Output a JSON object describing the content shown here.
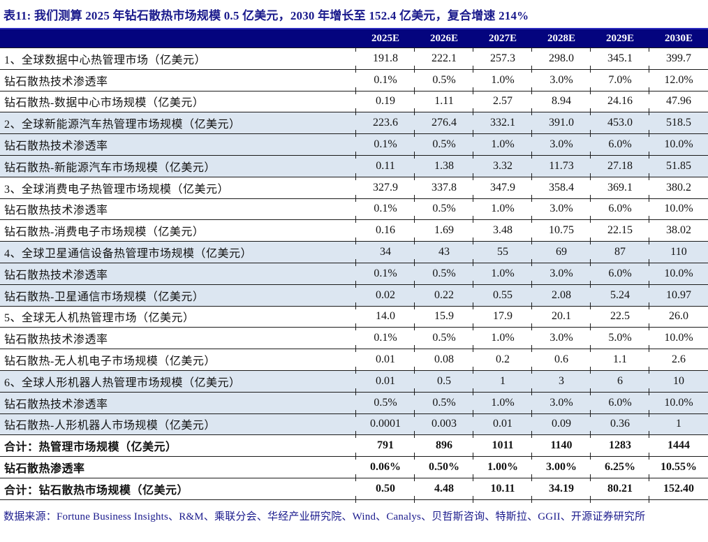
{
  "title": "表11:  我们测算 2025 年钻石散热市场规模 0.5 亿美元，2030 年增长至 152.4 亿美元，复合增速 214%",
  "table": {
    "label_column_header": "",
    "columns": [
      "2025E",
      "2026E",
      "2027E",
      "2028E",
      "2029E",
      "2030E"
    ],
    "rows": [
      {
        "label": "1、全球数据中心热管理市场（亿美元）",
        "values": [
          "191.8",
          "222.1",
          "257.3",
          "298.0",
          "345.1",
          "399.7"
        ],
        "shaded": false,
        "bold": false
      },
      {
        "label": "钻石散热技术渗透率",
        "values": [
          "0.1%",
          "0.5%",
          "1.0%",
          "3.0%",
          "7.0%",
          "12.0%"
        ],
        "shaded": false,
        "bold": false
      },
      {
        "label": "钻石散热-数据中心市场规模（亿美元）",
        "values": [
          "0.19",
          "1.11",
          "2.57",
          "8.94",
          "24.16",
          "47.96"
        ],
        "shaded": false,
        "bold": false
      },
      {
        "label": "2、全球新能源汽车热管理市场规模（亿美元）",
        "values": [
          "223.6",
          "276.4",
          "332.1",
          "391.0",
          "453.0",
          "518.5"
        ],
        "shaded": true,
        "bold": false
      },
      {
        "label": "钻石散热技术渗透率",
        "values": [
          "0.1%",
          "0.5%",
          "1.0%",
          "3.0%",
          "6.0%",
          "10.0%"
        ],
        "shaded": true,
        "bold": false
      },
      {
        "label": "钻石散热-新能源汽车市场规模（亿美元）",
        "values": [
          "0.11",
          "1.38",
          "3.32",
          "11.73",
          "27.18",
          "51.85"
        ],
        "shaded": true,
        "bold": false
      },
      {
        "label": "3、全球消费电子热管理市场规模（亿美元）",
        "values": [
          "327.9",
          "337.8",
          "347.9",
          "358.4",
          "369.1",
          "380.2"
        ],
        "shaded": false,
        "bold": false
      },
      {
        "label": "钻石散热技术渗透率",
        "values": [
          "0.1%",
          "0.5%",
          "1.0%",
          "3.0%",
          "6.0%",
          "10.0%"
        ],
        "shaded": false,
        "bold": false
      },
      {
        "label": "钻石散热-消费电子市场规模（亿美元）",
        "values": [
          "0.16",
          "1.69",
          "3.48",
          "10.75",
          "22.15",
          "38.02"
        ],
        "shaded": false,
        "bold": false
      },
      {
        "label": "4、全球卫星通信设备热管理市场规模（亿美元）",
        "values": [
          "34",
          "43",
          "55",
          "69",
          "87",
          "110"
        ],
        "shaded": true,
        "bold": false
      },
      {
        "label": "钻石散热技术渗透率",
        "values": [
          "0.1%",
          "0.5%",
          "1.0%",
          "3.0%",
          "6.0%",
          "10.0%"
        ],
        "shaded": true,
        "bold": false
      },
      {
        "label": "钻石散热-卫星通信市场规模（亿美元）",
        "values": [
          "0.02",
          "0.22",
          "0.55",
          "2.08",
          "5.24",
          "10.97"
        ],
        "shaded": true,
        "bold": false
      },
      {
        "label": "5、全球无人机热管理市场（亿美元）",
        "values": [
          "14.0",
          "15.9",
          "17.9",
          "20.1",
          "22.5",
          "26.0"
        ],
        "shaded": false,
        "bold": false
      },
      {
        "label": "钻石散热技术渗透率",
        "values": [
          "0.1%",
          "0.5%",
          "1.0%",
          "3.0%",
          "5.0%",
          "10.0%"
        ],
        "shaded": false,
        "bold": false
      },
      {
        "label": "钻石散热-无人机电子市场规模（亿美元）",
        "values": [
          "0.01",
          "0.08",
          "0.2",
          "0.6",
          "1.1",
          "2.6"
        ],
        "shaded": false,
        "bold": false
      },
      {
        "label": "6、全球人形机器人热管理市场规模（亿美元）",
        "values": [
          "0.01",
          "0.5",
          "1",
          "3",
          "6",
          "10"
        ],
        "shaded": true,
        "bold": false
      },
      {
        "label": "钻石散热技术渗透率",
        "values": [
          "0.5%",
          "0.5%",
          "1.0%",
          "3.0%",
          "6.0%",
          "10.0%"
        ],
        "shaded": true,
        "bold": false
      },
      {
        "label": "钻石散热-人形机器人市场规模（亿美元）",
        "values": [
          "0.0001",
          "0.003",
          "0.01",
          "0.09",
          "0.36",
          "1"
        ],
        "shaded": true,
        "bold": false
      },
      {
        "label": "合计：热管理市场规模（亿美元）",
        "values": [
          "791",
          "896",
          "1011",
          "1140",
          "1283",
          "1444"
        ],
        "shaded": false,
        "bold": true
      },
      {
        "label": "钻石散热渗透率",
        "values": [
          "0.06%",
          "0.50%",
          "1.00%",
          "3.00%",
          "6.25%",
          "10.55%"
        ],
        "shaded": false,
        "bold": true
      },
      {
        "label": "合计：钻石散热市场规模（亿美元）",
        "values": [
          "0.50",
          "4.48",
          "10.11",
          "34.19",
          "80.21",
          "152.40"
        ],
        "shaded": false,
        "bold": true
      }
    ]
  },
  "footer": "数据来源：Fortune Business Insights、R&M、乘联分会、华经产业研究院、Wind、Canalys、贝哲斯咨询、特斯拉、GGII、开源证券研究所",
  "colors": {
    "header_bg": "#04047e",
    "header_text": "#ffffff",
    "title_text": "#1a1a8c",
    "footer_text": "#1a1a8c",
    "shaded_row_bg": "#dce6f1",
    "rule_line": "#1a1a1a",
    "table_top_accent": "#2b2bbe"
  }
}
